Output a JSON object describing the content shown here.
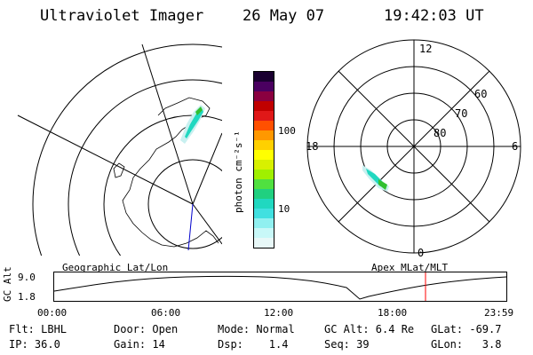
{
  "header": {
    "title": "Ultraviolet Imager",
    "date": "26 May 07",
    "time": "19:42:03 UT"
  },
  "colorbar": {
    "label": "photon cm⁻²s⁻¹",
    "ticks": [
      "100",
      "10"
    ],
    "colors": [
      "#1a0030",
      "#4a0060",
      "#8a0040",
      "#c00000",
      "#e01818",
      "#ff5000",
      "#ff9800",
      "#ffd000",
      "#ffff00",
      "#d8f000",
      "#a0f000",
      "#50e040",
      "#20d080",
      "#20d8c0",
      "#40e0e0",
      "#90f0f0",
      "#c8f8f8",
      "#e8f8f8"
    ]
  },
  "polar": {
    "labels": {
      "top": "12",
      "right": "6",
      "left": "18",
      "bottom": "0",
      "lat60": "60",
      "lat70": "70",
      "lat80": "80"
    }
  },
  "panels": {
    "left": "Geographic Lat/Lon",
    "right": "Apex MLat/MLT"
  },
  "orbit": {
    "axis_title": "GC Alt",
    "y_ticks": [
      "9.0",
      "1.8"
    ],
    "x_ticks": [
      "00:00",
      "06:00",
      "12:00",
      "18:00",
      "23:59"
    ],
    "current_time_color": "#ff0000"
  },
  "footer": {
    "row1": [
      "Flt: LBHL",
      "Door: Open",
      "Mode: Normal",
      "GC Alt: 6.4 Re",
      "GLat: -69.7"
    ],
    "row2": [
      "IP: 36.0",
      "Gain: 14",
      "Dsp:    1.4",
      "Seq: 39",
      "GLon:   3.8"
    ]
  }
}
